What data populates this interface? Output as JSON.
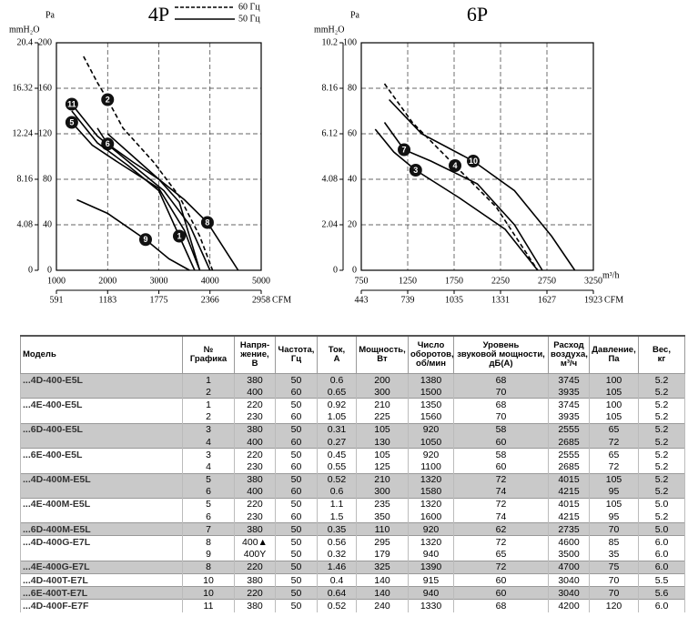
{
  "chart_data": [
    {
      "type": "line",
      "title": "4P",
      "y2_label": "mmH₂O",
      "y_label": "Pa",
      "x2_label": "CFM",
      "xlim": [
        1000,
        5000
      ],
      "xticks": [
        1000,
        2000,
        3000,
        4000,
        5000
      ],
      "x2lim": [
        591,
        2958
      ],
      "x2ticks": [
        591,
        1183,
        1775,
        2366,
        2958
      ],
      "ylim": [
        0,
        200
      ],
      "yticks": [
        0,
        40,
        80,
        120,
        160,
        200
      ],
      "y2lim": [
        0,
        20.4
      ],
      "y2ticks": [
        0,
        4.08,
        8.16,
        12.24,
        16.32,
        20.4
      ],
      "grid": true,
      "legend": [
        {
          "label": "60 Гц",
          "dash": true
        },
        {
          "label": "50 Гц",
          "dash": false
        }
      ],
      "series": [
        {
          "name": "11",
          "color": "#000",
          "dash": false,
          "x": [
            1300,
            1800,
            2500,
            3100,
            3600,
            4000
          ],
          "values": [
            146,
            118,
            92,
            70,
            40,
            0
          ]
        },
        {
          "name": "2",
          "color": "#000",
          "dash": true,
          "x": [
            1530,
            1800,
            2000,
            2300,
            2900,
            3400,
            3800,
            4050
          ],
          "values": [
            188,
            165,
            150,
            125,
            95,
            65,
            30,
            0
          ]
        },
        {
          "name": "5",
          "color": "#000",
          "dash": false,
          "x": [
            1300,
            1700,
            2200,
            3000,
            3500,
            3800
          ],
          "values": [
            130,
            110,
            95,
            72,
            35,
            0
          ]
        },
        {
          "name": "6",
          "color": "#000",
          "dash": false,
          "x": [
            1800,
            2000,
            2500,
            3000,
            3400,
            3800
          ],
          "values": [
            125,
            111,
            95,
            80,
            60,
            0
          ]
        },
        {
          "name": "8",
          "color": "#000",
          "dash": false,
          "x": [
            2000,
            2500,
            3000,
            3500,
            3950,
            4550
          ],
          "values": [
            120,
            100,
            80,
            62,
            42,
            0
          ]
        },
        {
          "name": "9",
          "color": "#000",
          "dash": false,
          "x": [
            1400,
            2000,
            2742,
            3200,
            3600
          ],
          "values": [
            62,
            50,
            27,
            10,
            0
          ]
        },
        {
          "name": "1",
          "color": "#000",
          "dash": false,
          "x": [
            1300,
            1800,
            2400,
            3000,
            3400,
            3700
          ],
          "values": [
            140,
            112,
            92,
            70,
            30,
            0
          ]
        }
      ]
    },
    {
      "type": "line",
      "title": "6P",
      "y2_label": "mmH₂O",
      "y_label": "Pa",
      "x_label": "m³/h",
      "x2_label": "CFM",
      "xlim": [
        750,
        3250
      ],
      "xticks": [
        750,
        1250,
        1750,
        2250,
        2750,
        3250
      ],
      "x2lim": [
        443,
        1923
      ],
      "x2ticks": [
        443,
        739,
        1035,
        1331,
        1627,
        1923
      ],
      "ylim": [
        0,
        100
      ],
      "yticks": [
        0,
        20,
        40,
        60,
        80,
        100
      ],
      "y2lim": [
        0,
        10.2
      ],
      "y2ticks": [
        0,
        2.04,
        4.08,
        6.12,
        8.16,
        10.2
      ],
      "grid": true,
      "series": [
        {
          "name": "3",
          "color": "#000",
          "dash": false,
          "x": [
            900,
            1100,
            1336,
            1800,
            2300,
            2650
          ],
          "values": [
            62,
            52,
            44,
            32,
            18,
            0
          ]
        },
        {
          "name": "7",
          "color": "#000",
          "dash": false,
          "x": [
            1000,
            1211,
            1500,
            2000,
            2400,
            2700
          ],
          "values": [
            65,
            53,
            48,
            38,
            20,
            0
          ]
        },
        {
          "name": "4",
          "color": "#000",
          "dash": true,
          "x": [
            1000,
            1300,
            1760,
            2200,
            2650
          ],
          "values": [
            82,
            65,
            46,
            28,
            0
          ]
        },
        {
          "name": "10",
          "color": "#000",
          "dash": false,
          "x": [
            1050,
            1400,
            1956,
            2400,
            2800,
            3050
          ],
          "values": [
            75,
            60,
            48,
            35,
            15,
            0
          ]
        }
      ]
    }
  ],
  "table": {
    "header": [
      "Модель",
      "№\nГрафика",
      "Напря-\nжение,\nВ",
      "Частота,\nГц",
      "Ток,\nА",
      "Мощность,\nВт",
      "Число\nоборотов,\nоб/мин",
      "Уровень\nзвуковой мощности,\nдБ(А)",
      "Расход\nвоздуха,\nм³/ч",
      "Давление,\nПа",
      "Вес,\nкг"
    ],
    "groups": [
      {
        "model": "...4D-400-E5L",
        "shaded": true,
        "rows": [
          [
            "1",
            "380",
            "50",
            "0.6",
            "200",
            "1380",
            "68",
            "3745",
            "100",
            "5.2"
          ],
          [
            "2",
            "400",
            "60",
            "0.65",
            "300",
            "1500",
            "70",
            "3935",
            "105",
            "5.2"
          ]
        ]
      },
      {
        "model": "...4E-400-E5L",
        "shaded": false,
        "rows": [
          [
            "1",
            "220",
            "50",
            "0.92",
            "210",
            "1350",
            "68",
            "3745",
            "100",
            "5.2"
          ],
          [
            "2",
            "230",
            "60",
            "1.05",
            "225",
            "1560",
            "70",
            "3935",
            "105",
            "5.2"
          ]
        ]
      },
      {
        "model": "...6D-400-E5L",
        "shaded": true,
        "rows": [
          [
            "3",
            "380",
            "50",
            "0.31",
            "105",
            "920",
            "58",
            "2555",
            "65",
            "5.2"
          ],
          [
            "4",
            "400",
            "60",
            "0.27",
            "130",
            "1050",
            "60",
            "2685",
            "72",
            "5.2"
          ]
        ]
      },
      {
        "model": "...6E-400-E5L",
        "shaded": false,
        "rows": [
          [
            "3",
            "220",
            "50",
            "0.45",
            "105",
            "920",
            "58",
            "2555",
            "65",
            "5.2"
          ],
          [
            "4",
            "230",
            "60",
            "0.55",
            "125",
            "1100",
            "60",
            "2685",
            "72",
            "5.2"
          ]
        ]
      },
      {
        "model": "...4D-400M-E5L",
        "shaded": true,
        "rows": [
          [
            "5",
            "380",
            "50",
            "0.52",
            "210",
            "1320",
            "72",
            "4015",
            "105",
            "5.2"
          ],
          [
            "6",
            "400",
            "60",
            "0.6",
            "300",
            "1580",
            "74",
            "4215",
            "95",
            "5.2"
          ]
        ]
      },
      {
        "model": "...4E-400M-E5L",
        "shaded": false,
        "rows": [
          [
            "5",
            "220",
            "50",
            "1.1",
            "235",
            "1320",
            "72",
            "4015",
            "105",
            "5.0"
          ],
          [
            "6",
            "230",
            "60",
            "1.5",
            "350",
            "1600",
            "74",
            "4215",
            "95",
            "5.2"
          ]
        ]
      },
      {
        "model": "...6D-400M-E5L",
        "shaded": true,
        "rows": [
          [
            "7",
            "380",
            "50",
            "0.35",
            "110",
            "920",
            "62",
            "2735",
            "70",
            "5.0"
          ]
        ]
      },
      {
        "model": "...4D-400G-E7L",
        "shaded": false,
        "rows": [
          [
            "8",
            "400▲",
            "50",
            "0.56",
            "295",
            "1320",
            "72",
            "4600",
            "85",
            "6.0"
          ],
          [
            "9",
            "400Y",
            "50",
            "0.32",
            "179",
            "940",
            "65",
            "3500",
            "35",
            "6.0"
          ]
        ]
      },
      {
        "model": "...4E-400G-E7L",
        "shaded": true,
        "rows": [
          [
            "8",
            "220",
            "50",
            "1.46",
            "325",
            "1390",
            "72",
            "4700",
            "75",
            "6.0"
          ]
        ]
      },
      {
        "model": "...4D-400T-E7L",
        "shaded": false,
        "rows": [
          [
            "10",
            "380",
            "50",
            "0.4",
            "140",
            "915",
            "60",
            "3040",
            "70",
            "5.5"
          ]
        ]
      },
      {
        "model": "...6E-400T-E7L",
        "shaded": true,
        "rows": [
          [
            "10",
            "220",
            "50",
            "0.64",
            "140",
            "940",
            "60",
            "3040",
            "70",
            "5.6"
          ]
        ]
      },
      {
        "model": "...4D-400F-E7F",
        "shaded": false,
        "rows": [
          [
            "11",
            "380",
            "50",
            "0.52",
            "240",
            "1330",
            "68",
            "4200",
            "120",
            "6.0"
          ]
        ]
      }
    ]
  }
}
